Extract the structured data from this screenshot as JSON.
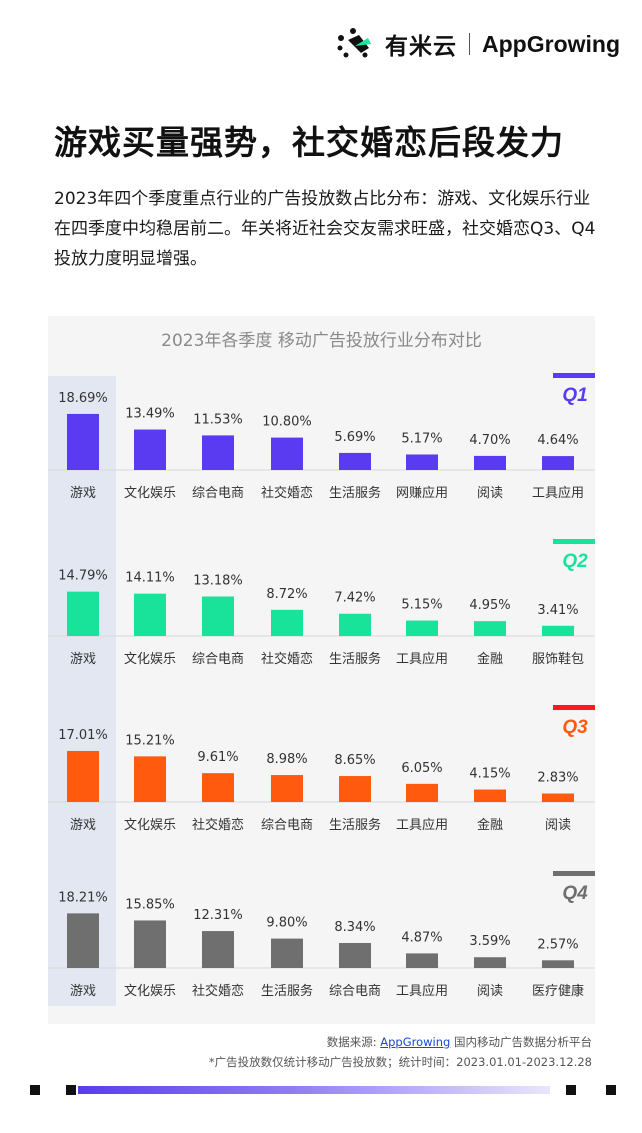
{
  "brand": {
    "cn_name": "有米云",
    "en_name": "AppGrowing"
  },
  "headline": "游戏买量强势，社交婚恋后段发力",
  "intro": "2023年四个季度重点行业的广告投放数占比分布：游戏、文化娱乐行业在四季度中均稳居前二。年关将近社会交友需求旺盛，社交婚恋Q3、Q4投放力度明显增强。",
  "chart_data": {
    "type": "bar",
    "title": "2023年各季度 移动广告投放行业分布对比",
    "unit": "%",
    "panels": [
      {
        "quarter": "Q1",
        "color": "#5b3bf2",
        "categories": [
          "游戏",
          "文化娱乐",
          "综合电商",
          "社交婚恋",
          "生活服务",
          "网赚应用",
          "阅读",
          "工具应用"
        ],
        "values": [
          18.69,
          13.49,
          11.53,
          10.8,
          5.69,
          5.17,
          4.7,
          4.64
        ],
        "labels": [
          "18.69%",
          "13.49%",
          "11.53%",
          "10.80%",
          "5.69%",
          "5.17%",
          "4.70%",
          "4.64%"
        ]
      },
      {
        "quarter": "Q2",
        "color": "#19e39a",
        "categories": [
          "游戏",
          "文化娱乐",
          "综合电商",
          "社交婚恋",
          "生活服务",
          "工具应用",
          "金融",
          "服饰鞋包"
        ],
        "values": [
          14.79,
          14.11,
          13.18,
          8.72,
          7.42,
          5.15,
          4.95,
          3.41
        ],
        "labels": [
          "14.79%",
          "14.11%",
          "13.18%",
          "8.72%",
          "7.42%",
          "5.15%",
          "4.95%",
          "3.41%"
        ]
      },
      {
        "quarter": "Q3",
        "color": "#ff5a0e",
        "bar_accent": "#ff1a1a",
        "categories": [
          "游戏",
          "文化娱乐",
          "社交婚恋",
          "综合电商",
          "生活服务",
          "工具应用",
          "金融",
          "阅读"
        ],
        "values": [
          17.01,
          15.21,
          9.61,
          8.98,
          8.65,
          6.05,
          4.15,
          2.83
        ],
        "labels": [
          "17.01%",
          "15.21%",
          "9.61%",
          "8.98%",
          "8.65%",
          "6.05%",
          "4.15%",
          "2.83%"
        ]
      },
      {
        "quarter": "Q4",
        "color": "#6f6f6f",
        "categories": [
          "游戏",
          "文化娱乐",
          "社交婚恋",
          "生活服务",
          "综合电商",
          "工具应用",
          "阅读",
          "医疗健康"
        ],
        "values": [
          18.21,
          15.85,
          12.31,
          9.8,
          8.34,
          4.87,
          3.59,
          2.57
        ],
        "labels": [
          "18.21%",
          "15.85%",
          "12.31%",
          "9.80%",
          "8.34%",
          "4.87%",
          "3.59%",
          "2.57%"
        ]
      }
    ]
  },
  "footer": {
    "source_prefix": "数据来源: ",
    "source_link": "AppGrowing",
    "source_suffix": " 国内移动广告数据分析平台",
    "note": "*广告投放数仅统计移动广告投放数；统计时间：2023.01.01-2023.12.28"
  }
}
